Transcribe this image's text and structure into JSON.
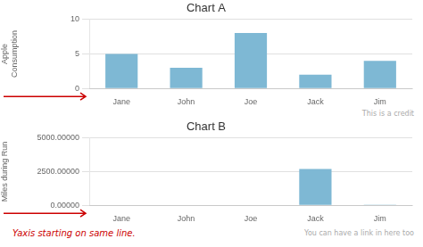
{
  "chart_data": [
    {
      "type": "bar",
      "title": "Chart A",
      "categories": [
        "Jane",
        "John",
        "Joe",
        "Jack",
        "Jim"
      ],
      "values": [
        5,
        3,
        8,
        2,
        4
      ],
      "color": "#7eb8d4",
      "ylabel": "Apple\nConsumption",
      "ylim": [
        0,
        10
      ],
      "yticks": [
        0,
        5,
        10
      ],
      "grid": true,
      "annotations": [
        {
          "text": "This is a credit"
        }
      ]
    },
    {
      "type": "bar",
      "title": "Chart B",
      "categories": [
        "Jane",
        "John",
        "Joe",
        "Jack",
        "Jim"
      ],
      "values": [
        0,
        0,
        0,
        2700,
        50
      ],
      "color": "#7eb8d4",
      "ylabel": "Miles during Run",
      "ylim": [
        0,
        5000
      ],
      "yticks": [
        {
          "value": 0,
          "label": "0.00000"
        },
        {
          "value": 2500,
          "label": "2500.00000"
        },
        {
          "value": 5000,
          "label": "5000.00000"
        }
      ],
      "grid": true,
      "annotations": [
        {
          "text": "You can have a link in here too"
        },
        {
          "text": "Yaxis starting on same line.",
          "color": "#cc0000"
        }
      ]
    }
  ]
}
